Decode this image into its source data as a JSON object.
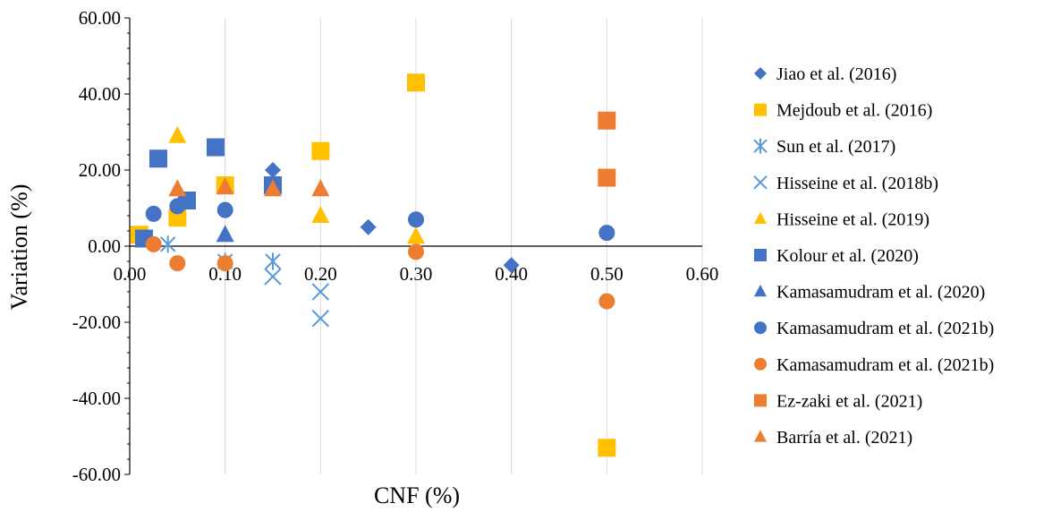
{
  "chart_data": {
    "type": "scatter",
    "title": "",
    "xlabel": "CNF (%)",
    "ylabel": "Variation (%)",
    "xlim": [
      0,
      0.6
    ],
    "ylim": [
      -60,
      60
    ],
    "x_ticks": [
      "0.00",
      "0.10",
      "0.20",
      "0.30",
      "0.40",
      "0.50",
      "0.60"
    ],
    "y_ticks": [
      "60.00",
      "40.00",
      "20.00",
      "0.00",
      "-20.00",
      "-40.00",
      "-60.00"
    ],
    "grid": "vertical",
    "legend_position": "right",
    "series": [
      {
        "name": "Jiao et al. (2016)",
        "marker": "diamond",
        "color": "#4472C4",
        "points": [
          [
            0.15,
            20
          ],
          [
            0.25,
            5
          ],
          [
            0.4,
            -5
          ]
        ]
      },
      {
        "name": "Mejdoub et al. (2016)",
        "marker": "square",
        "color": "#FFC000",
        "points": [
          [
            0.01,
            3
          ],
          [
            0.05,
            7.5
          ],
          [
            0.1,
            16
          ],
          [
            0.2,
            25
          ],
          [
            0.3,
            43
          ],
          [
            0.5,
            -53
          ]
        ]
      },
      {
        "name": "Sun et al. (2017)",
        "marker": "star",
        "color": "#5B9BD5",
        "points": [
          [
            0.04,
            0.5
          ],
          [
            0.1,
            -4
          ],
          [
            0.15,
            -4
          ]
        ]
      },
      {
        "name": "Hisseine et al. (2018b)",
        "marker": "x",
        "color": "#5B9BD5",
        "points": [
          [
            0.15,
            -8
          ],
          [
            0.2,
            -12
          ],
          [
            0.2,
            -19
          ]
        ]
      },
      {
        "name": "Hisseine et al. (2019)",
        "marker": "triangle",
        "color": "#FFC000",
        "points": [
          [
            0.05,
            29
          ],
          [
            0.2,
            8
          ],
          [
            0.3,
            2.5
          ]
        ]
      },
      {
        "name": "Kolour et al. (2020)",
        "marker": "square",
        "color": "#4472C4",
        "points": [
          [
            0.015,
            2
          ],
          [
            0.03,
            23
          ],
          [
            0.06,
            12
          ],
          [
            0.09,
            26
          ],
          [
            0.15,
            16
          ]
        ]
      },
      {
        "name": "Kamasamudram et al. (2020)",
        "marker": "triangle",
        "color": "#4472C4",
        "points": [
          [
            0.1,
            3
          ]
        ]
      },
      {
        "name": "Kamasamudram et al. (2021b)",
        "marker": "circle",
        "color": "#4472C4",
        "points": [
          [
            0.025,
            8.5
          ],
          [
            0.05,
            10.5
          ],
          [
            0.1,
            9.5
          ],
          [
            0.3,
            7
          ],
          [
            0.5,
            3.5
          ]
        ]
      },
      {
        "name": "Kamasamudram et al. (2021b)",
        "marker": "circle",
        "color": "#ED7D31",
        "points": [
          [
            0.025,
            0.5
          ],
          [
            0.05,
            -4.5
          ],
          [
            0.1,
            -4.5
          ],
          [
            0.3,
            -1.5
          ],
          [
            0.5,
            -14.5
          ]
        ]
      },
      {
        "name": "Ez-zaki et al. (2021)",
        "marker": "square",
        "color": "#ED7D31",
        "points": [
          [
            0.5,
            33
          ],
          [
            0.5,
            18
          ]
        ]
      },
      {
        "name": "Barría et al. (2021)",
        "marker": "triangle",
        "color": "#ED7D31",
        "points": [
          [
            0.05,
            15
          ],
          [
            0.1,
            15.5
          ],
          [
            0.15,
            15
          ],
          [
            0.2,
            15
          ]
        ]
      }
    ]
  }
}
